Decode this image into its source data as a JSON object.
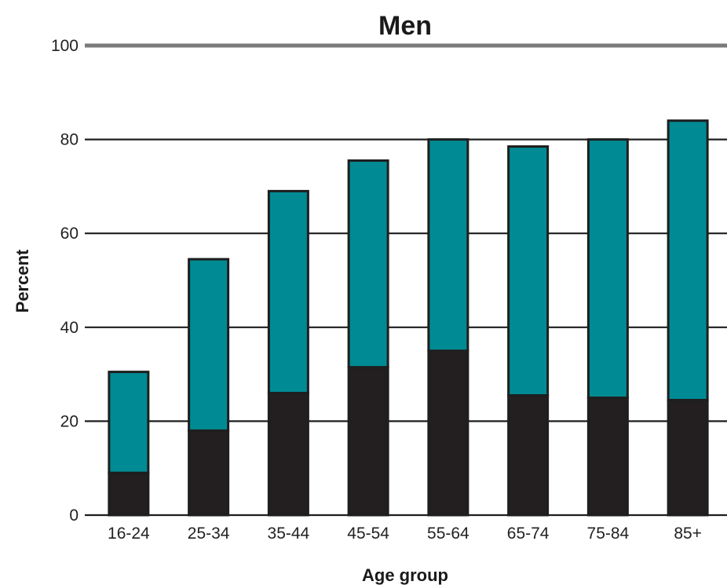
{
  "chart_data": {
    "type": "bar",
    "stacked": true,
    "title": "Men",
    "xlabel": "Age group",
    "ylabel": "Percent",
    "ylim": [
      0,
      100
    ],
    "yticks": [
      "0",
      "20",
      "40",
      "60",
      "80",
      "100"
    ],
    "grid": "horizontal",
    "categories": [
      "16-24",
      "25-34",
      "35-44",
      "45-54",
      "55-64",
      "65-74",
      "75-84",
      "85+"
    ],
    "series": [
      {
        "color": "#231f20",
        "values": [
          9,
          18,
          26,
          31.5,
          35,
          25.5,
          25,
          24.5
        ]
      },
      {
        "color": "#008b94",
        "values": [
          21.5,
          36.5,
          43,
          44,
          45,
          53,
          55,
          59.5
        ]
      }
    ]
  }
}
